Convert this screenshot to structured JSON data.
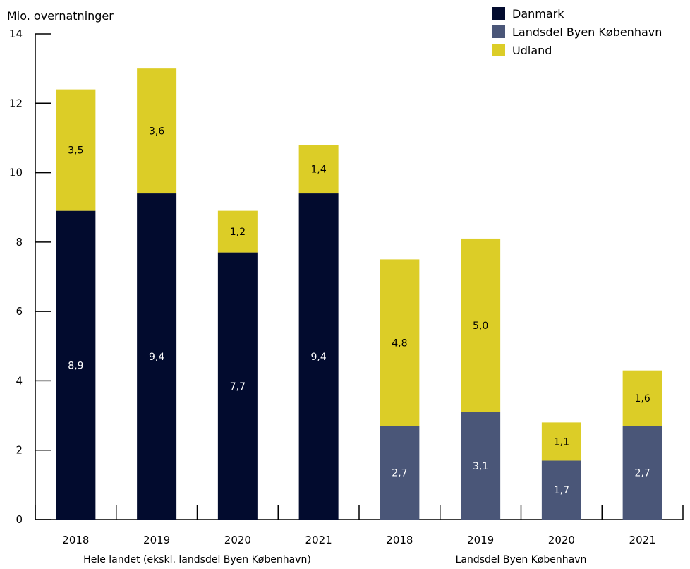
{
  "chart_data": {
    "type": "bar",
    "stacked": true,
    "unit_label": "Mio. overnatninger",
    "ylim": [
      0,
      14
    ],
    "yticks": [
      0,
      2,
      4,
      6,
      8,
      10,
      12,
      14
    ],
    "categories": [
      "2018",
      "2019",
      "2020",
      "2021",
      "2018",
      "2019",
      "2020",
      "2021"
    ],
    "groups": [
      {
        "label": "Hele landet (ekskl. landsdel Byen København)",
        "start": 0,
        "end": 3
      },
      {
        "label": "Landsdel Byen København",
        "start": 4,
        "end": 7
      }
    ],
    "series": [
      {
        "name": "Danmark",
        "color": "#020b2e",
        "label_color": "#ffffff",
        "values": [
          8.9,
          9.4,
          7.7,
          9.4,
          null,
          null,
          null,
          null
        ],
        "labels": [
          "8,9",
          "9,4",
          "7,7",
          "9,4",
          "",
          "",
          "",
          ""
        ]
      },
      {
        "name": "Landsdel Byen København",
        "color": "#4a5678",
        "label_color": "#ffffff",
        "values": [
          null,
          null,
          null,
          null,
          2.7,
          3.1,
          1.7,
          2.7
        ],
        "labels": [
          "",
          "",
          "",
          "",
          "2,7",
          "3,1",
          "1,7",
          "2,7"
        ]
      },
      {
        "name": "Udland",
        "color": "#dccd27",
        "label_color": "#000000",
        "values": [
          3.5,
          3.6,
          1.2,
          1.4,
          4.8,
          5.0,
          1.1,
          1.6
        ],
        "labels": [
          "3,5",
          "3,6",
          "1,2",
          "1,4",
          "4,8",
          "5,0",
          "1,1",
          "1,6"
        ]
      }
    ],
    "legend": {
      "position": "top-right"
    }
  }
}
